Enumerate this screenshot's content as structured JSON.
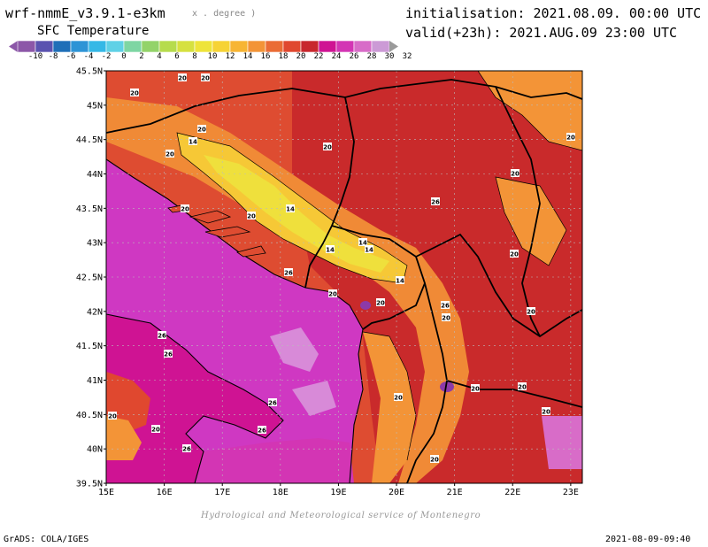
{
  "header": {
    "model": "wrf-nmmE_v3.9.1-e3km",
    "units": "x . degree )",
    "initialisation": "initialisation: 2021.08.09. 00:00 UTC",
    "valid": "valid(+23h): 2021.AUG.09 23:00 UTC",
    "field": "SFC Temperature"
  },
  "colorbar": {
    "labels": [
      "-10",
      "-8",
      "-6",
      "-4",
      "-2",
      "0",
      "2",
      "4",
      "6",
      "8",
      "10",
      "12",
      "14",
      "16",
      "18",
      "20",
      "22",
      "24",
      "26",
      "28",
      "30",
      "32"
    ],
    "colors": [
      "#8c57a8",
      "#5a53b0",
      "#1f6fb8",
      "#2e94d6",
      "#35b8e6",
      "#5fd1e6",
      "#7ed6a3",
      "#93d36a",
      "#b6dc4d",
      "#d6e140",
      "#eee43a",
      "#f6d335",
      "#f7b534",
      "#f39437",
      "#ea6c35",
      "#e0482f",
      "#c8272d",
      "#cf1393",
      "#d335b4",
      "#d86cc8",
      "#cc9ad6"
    ]
  },
  "map": {
    "lon_labels": [
      "15E",
      "16E",
      "17E",
      "18E",
      "19E",
      "20E",
      "21E",
      "22E",
      "23E"
    ],
    "lat_labels": [
      "45.5N",
      "45N",
      "44.5N",
      "44N",
      "43.5N",
      "43N",
      "42.5N",
      "42N",
      "41.5N",
      "41N",
      "40.5N",
      "40N",
      "39.5N"
    ],
    "contour_labels": [
      "20",
      "20",
      "20",
      "20",
      "14",
      "20",
      "20",
      "20",
      "20",
      "26",
      "14",
      "20",
      "20",
      "14",
      "14",
      "14",
      "20",
      "26",
      "20",
      "14",
      "20",
      "20",
      "26",
      "26",
      "20",
      "20",
      "20",
      "20",
      "26",
      "20",
      "26",
      "26",
      "20",
      "20",
      "20",
      "26"
    ]
  },
  "footer": {
    "credit": "Hydrological and Meteorological service of Montenegro",
    "software": "GrADS: COLA/IGES",
    "timestamp": "2021-08-09-09:40"
  }
}
